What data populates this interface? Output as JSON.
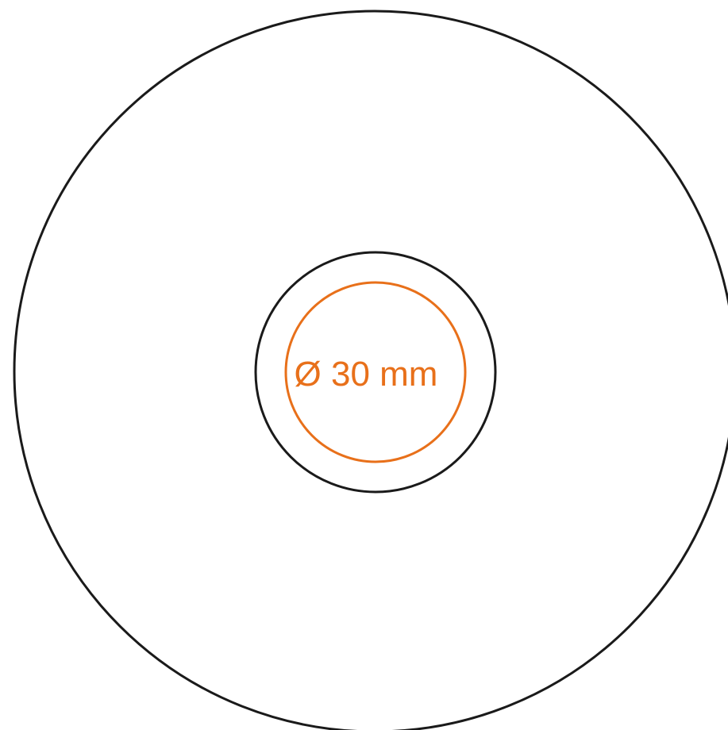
{
  "diagram": {
    "dimension_label": "Ø 30 mm",
    "colors": {
      "background": "#ffffff",
      "outline": "#1a1a1a",
      "accent": "#e8701a"
    }
  }
}
